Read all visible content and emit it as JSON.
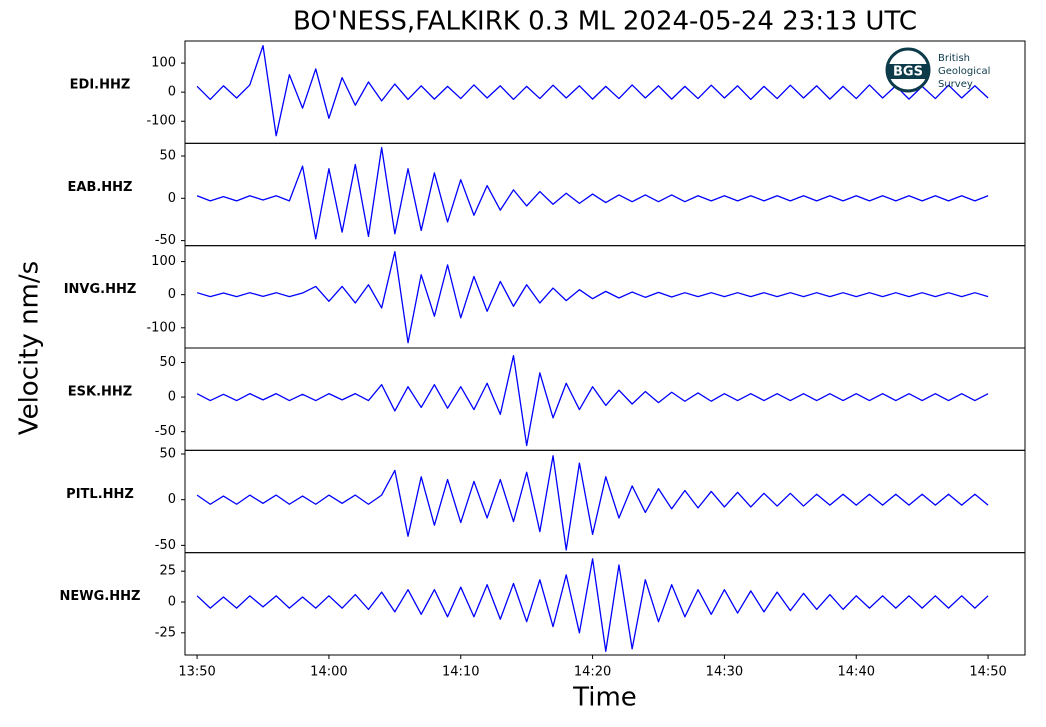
{
  "chart_data": {
    "type": "line",
    "title": "BO'NESS,FALKIRK 0.3 ML   2024-05-24 23:13 UTC",
    "y_label": "Velocity nm/s",
    "x_label": "Time",
    "color": "#0000ff",
    "logo": {
      "abbr": "BGS",
      "text": [
        "British",
        "Geological",
        "Survey"
      ]
    },
    "x": [
      "13:50",
      "13:51",
      "13:52",
      "13:53",
      "13:54",
      "13:55",
      "13:56",
      "13:57",
      "13:58",
      "13:59",
      "14:00",
      "14:01",
      "14:02",
      "14:03",
      "14:04",
      "14:05",
      "14:06",
      "14:07",
      "14:08",
      "14:09",
      "14:10",
      "14:11",
      "14:12",
      "14:13",
      "14:14",
      "14:15",
      "14:16",
      "14:17",
      "14:18",
      "14:19",
      "14:20",
      "14:21",
      "14:22",
      "14:23",
      "14:24",
      "14:25",
      "14:26",
      "14:27",
      "14:28",
      "14:29",
      "14:30",
      "14:31",
      "14:32",
      "14:33",
      "14:34",
      "14:35",
      "14:36",
      "14:37",
      "14:38",
      "14:39",
      "14:40",
      "14:41",
      "14:42",
      "14:43",
      "14:44",
      "14:45",
      "14:46",
      "14:47",
      "14:48",
      "14:49",
      "14:50"
    ],
    "xlim": [
      "13:49:05",
      "14:52:48"
    ],
    "xticks": [
      "13:50",
      "14:00",
      "14:10",
      "14:20",
      "14:30",
      "14:40",
      "14:50"
    ],
    "series": [
      {
        "name": "EDI.HHZ",
        "ylim": [
          -176,
          176
        ],
        "yticks": [
          -100,
          0,
          100
        ],
        "values": [
          20,
          -25,
          22,
          -20,
          25,
          160,
          -150,
          60,
          -55,
          80,
          -90,
          50,
          -45,
          35,
          -30,
          28,
          -25,
          22,
          -24,
          20,
          -22,
          25,
          -20,
          22,
          -25,
          20,
          -22,
          24,
          -20,
          22,
          -24,
          20,
          -22,
          25,
          -20,
          22,
          -24,
          20,
          -22,
          24,
          -20,
          22,
          -25,
          20,
          -22,
          24,
          -20,
          22,
          -24,
          20,
          -22,
          25,
          -20,
          22,
          -24,
          20,
          -22,
          24,
          -20,
          22,
          -20
        ]
      },
      {
        "name": "EAB.HHZ",
        "ylim": [
          -56,
          65
        ],
        "yticks": [
          -50,
          0,
          50
        ],
        "values": [
          3,
          -3,
          2,
          -3,
          3,
          -2,
          3,
          -3,
          38,
          -48,
          35,
          -40,
          40,
          -45,
          60,
          -42,
          35,
          -38,
          30,
          -28,
          22,
          -20,
          15,
          -14,
          10,
          -9,
          8,
          -7,
          6,
          -6,
          5,
          -5,
          4,
          -4,
          4,
          -4,
          4,
          -4,
          3,
          -3,
          3,
          -3,
          3,
          -3,
          3,
          -3,
          3,
          -3,
          3,
          -3,
          3,
          -3,
          3,
          -3,
          3,
          -3,
          3,
          -3,
          3,
          -3,
          3
        ]
      },
      {
        "name": "INVG.HHZ",
        "ylim": [
          -161,
          148
        ],
        "yticks": [
          -100,
          0,
          100
        ],
        "values": [
          6,
          -6,
          5,
          -6,
          6,
          -5,
          6,
          -6,
          5,
          25,
          -20,
          25,
          -25,
          30,
          -40,
          130,
          -145,
          60,
          -65,
          90,
          -70,
          55,
          -50,
          40,
          -35,
          30,
          -25,
          20,
          -18,
          15,
          -12,
          10,
          -10,
          8,
          -8,
          7,
          -7,
          6,
          -6,
          6,
          -6,
          6,
          -6,
          6,
          -6,
          6,
          -6,
          6,
          -6,
          6,
          -6,
          6,
          -6,
          6,
          -6,
          6,
          -6,
          6,
          -6,
          6,
          -6
        ]
      },
      {
        "name": "ESK.HHZ",
        "ylim": [
          -77,
          71
        ],
        "yticks": [
          -50,
          0,
          50
        ],
        "values": [
          5,
          -5,
          4,
          -5,
          5,
          -4,
          5,
          -5,
          4,
          -5,
          5,
          -4,
          5,
          -5,
          18,
          -20,
          15,
          -15,
          18,
          -16,
          15,
          -18,
          20,
          -25,
          60,
          -70,
          35,
          -30,
          20,
          -18,
          15,
          -12,
          10,
          -10,
          8,
          -8,
          7,
          -6,
          6,
          -6,
          5,
          -5,
          5,
          -5,
          5,
          -5,
          5,
          -5,
          5,
          -5,
          5,
          -5,
          5,
          -5,
          5,
          -5,
          5,
          -5,
          5,
          -5,
          5
        ]
      },
      {
        "name": "PITL.HHZ",
        "ylim": [
          -58,
          54
        ],
        "yticks": [
          -50,
          0,
          50
        ],
        "values": [
          5,
          -5,
          4,
          -5,
          5,
          -4,
          5,
          -5,
          4,
          -5,
          5,
          -4,
          5,
          -5,
          5,
          32,
          -40,
          25,
          -28,
          22,
          -25,
          20,
          -20,
          22,
          -24,
          30,
          -35,
          48,
          -55,
          40,
          -38,
          25,
          -20,
          15,
          -14,
          12,
          -10,
          10,
          -9,
          9,
          -8,
          8,
          -8,
          7,
          -7,
          7,
          -7,
          6,
          -6,
          6,
          -6,
          6,
          -6,
          6,
          -6,
          6,
          -6,
          6,
          -6,
          6,
          -6
        ]
      },
      {
        "name": "NEWG.HHZ",
        "ylim": [
          -43,
          40
        ],
        "yticks": [
          -25,
          0,
          25
        ],
        "values": [
          5,
          -5,
          4,
          -5,
          5,
          -4,
          5,
          -5,
          4,
          -5,
          5,
          -5,
          6,
          -6,
          8,
          -8,
          10,
          -10,
          10,
          -12,
          12,
          -12,
          14,
          -14,
          15,
          -16,
          18,
          -20,
          22,
          -25,
          35,
          -40,
          30,
          -38,
          18,
          -16,
          14,
          -12,
          10,
          -10,
          10,
          -9,
          9,
          -8,
          8,
          -7,
          7,
          -6,
          6,
          -6,
          5,
          -5,
          5,
          -5,
          5,
          -5,
          5,
          -5,
          5,
          -5,
          5
        ]
      }
    ]
  }
}
